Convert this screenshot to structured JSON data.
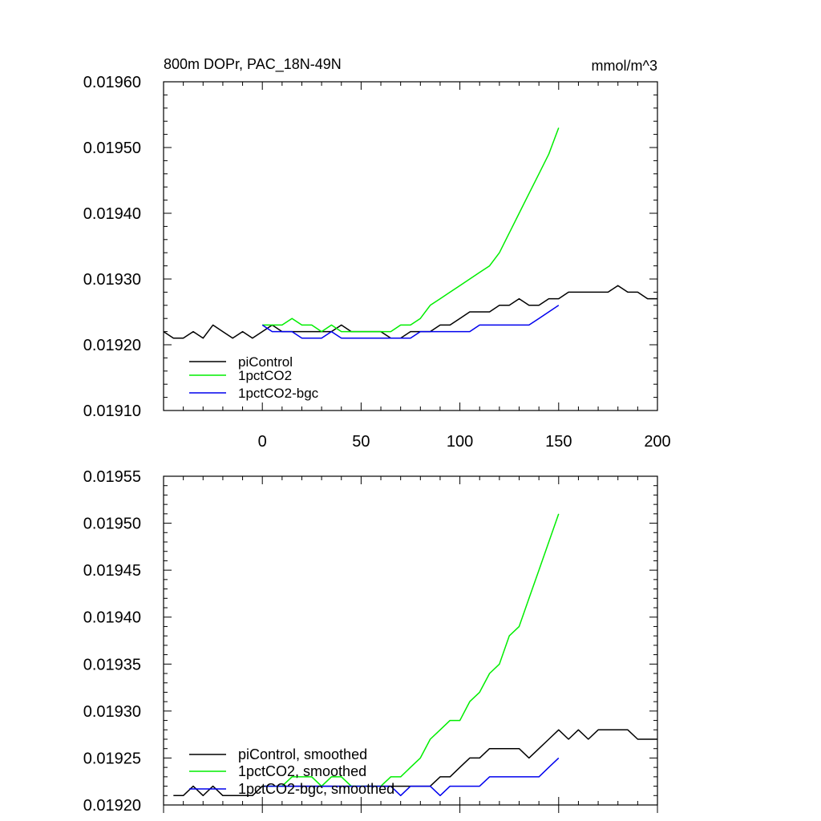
{
  "chart_data": [
    {
      "type": "line",
      "title": "800m DOPr, PAC_18N-49N",
      "units_label": "mmol/m^3",
      "xlim": [
        -50,
        200
      ],
      "ylim": [
        0.0191,
        0.0196
      ],
      "x_ticks": [
        0,
        50,
        100,
        150,
        200
      ],
      "x_tick_labels": [
        "0",
        "50",
        "100",
        "150",
        "200"
      ],
      "y_ticks": [
        0.0191,
        0.0192,
        0.0193,
        0.0194,
        0.0195,
        0.0196
      ],
      "y_tick_labels": [
        "0.01910",
        "0.01920",
        "0.01930",
        "0.01940",
        "0.01950",
        "0.01960"
      ],
      "legend_position": "bottom-left",
      "series": [
        {
          "name": "piControl",
          "color": "#000000",
          "x": [
            -50,
            -45,
            -40,
            -35,
            -30,
            -25,
            -20,
            -15,
            -10,
            -5,
            0,
            5,
            10,
            15,
            20,
            25,
            30,
            35,
            40,
            45,
            50,
            55,
            60,
            65,
            70,
            75,
            80,
            85,
            90,
            95,
            100,
            105,
            110,
            115,
            120,
            125,
            130,
            135,
            140,
            145,
            150,
            155,
            160,
            165,
            170,
            175,
            180,
            185,
            190,
            195,
            200
          ],
          "y": [
            0.01922,
            0.01921,
            0.01921,
            0.01922,
            0.01921,
            0.01923,
            0.01922,
            0.01921,
            0.01922,
            0.01921,
            0.01922,
            0.01923,
            0.01922,
            0.01922,
            0.01922,
            0.01922,
            0.01922,
            0.01922,
            0.01923,
            0.01922,
            0.01922,
            0.01922,
            0.01922,
            0.01921,
            0.01921,
            0.01922,
            0.01922,
            0.01922,
            0.01923,
            0.01923,
            0.01924,
            0.01925,
            0.01925,
            0.01925,
            0.01926,
            0.01926,
            0.01927,
            0.01926,
            0.01926,
            0.01927,
            0.01927,
            0.01928,
            0.01928,
            0.01928,
            0.01928,
            0.01928,
            0.01929,
            0.01928,
            0.01928,
            0.01927,
            0.01927
          ]
        },
        {
          "name": "1pctCO2",
          "color": "#00ee00",
          "x": [
            0,
            5,
            10,
            15,
            20,
            25,
            30,
            35,
            40,
            45,
            50,
            55,
            60,
            65,
            70,
            75,
            80,
            85,
            90,
            95,
            100,
            105,
            110,
            115,
            120,
            125,
            130,
            135,
            140,
            145,
            150
          ],
          "y": [
            0.01923,
            0.01923,
            0.01923,
            0.01924,
            0.01923,
            0.01923,
            0.01922,
            0.01923,
            0.01922,
            0.01922,
            0.01922,
            0.01922,
            0.01922,
            0.01922,
            0.01923,
            0.01923,
            0.01924,
            0.01926,
            0.01927,
            0.01928,
            0.01929,
            0.0193,
            0.01931,
            0.01932,
            0.01934,
            0.01937,
            0.0194,
            0.01943,
            0.01946,
            0.01949,
            0.01953
          ]
        },
        {
          "name": "1pctCO2-bgc",
          "color": "#0000ee",
          "x": [
            0,
            5,
            10,
            15,
            20,
            25,
            30,
            35,
            40,
            45,
            50,
            55,
            60,
            65,
            70,
            75,
            80,
            85,
            90,
            95,
            100,
            105,
            110,
            115,
            120,
            125,
            130,
            135,
            140,
            145,
            150
          ],
          "y": [
            0.01923,
            0.01922,
            0.01922,
            0.01922,
            0.01921,
            0.01921,
            0.01921,
            0.01922,
            0.01921,
            0.01921,
            0.01921,
            0.01921,
            0.01921,
            0.01921,
            0.01921,
            0.01921,
            0.01922,
            0.01922,
            0.01922,
            0.01922,
            0.01922,
            0.01922,
            0.01923,
            0.01923,
            0.01923,
            0.01923,
            0.01923,
            0.01923,
            0.01924,
            0.01925,
            0.01926
          ]
        }
      ]
    },
    {
      "type": "line",
      "title": "",
      "xlim": [
        -50,
        200
      ],
      "ylim": [
        0.0192,
        0.01955
      ],
      "x_ticks": [
        0,
        50,
        100,
        150,
        200
      ],
      "y_ticks": [
        0.0192,
        0.01925,
        0.0193,
        0.01935,
        0.0194,
        0.01945,
        0.0195,
        0.01955
      ],
      "y_tick_labels": [
        "0.01920",
        "0.01925",
        "0.01930",
        "0.01935",
        "0.01940",
        "0.01945",
        "0.01950",
        "0.01955"
      ],
      "legend_position": "bottom-left",
      "series": [
        {
          "name": "piControl, smoothed",
          "color": "#000000",
          "x": [
            -45,
            -40,
            -35,
            -30,
            -25,
            -20,
            -15,
            -10,
            -5,
            0,
            5,
            10,
            15,
            20,
            25,
            30,
            35,
            40,
            45,
            50,
            55,
            60,
            65,
            70,
            75,
            80,
            85,
            90,
            95,
            100,
            105,
            110,
            115,
            120,
            125,
            130,
            135,
            140,
            145,
            150,
            155,
            160,
            165,
            170,
            175,
            180,
            185,
            190,
            195,
            200
          ],
          "y": [
            0.01921,
            0.01921,
            0.01922,
            0.01921,
            0.01922,
            0.01921,
            0.01921,
            0.01921,
            0.01921,
            0.01922,
            0.01922,
            0.01922,
            0.01922,
            0.01922,
            0.01922,
            0.01922,
            0.01922,
            0.01922,
            0.01922,
            0.01922,
            0.01922,
            0.01922,
            0.01922,
            0.01922,
            0.01922,
            0.01922,
            0.01922,
            0.01923,
            0.01923,
            0.01924,
            0.01925,
            0.01925,
            0.01926,
            0.01926,
            0.01926,
            0.01926,
            0.01925,
            0.01926,
            0.01927,
            0.01928,
            0.01927,
            0.01928,
            0.01927,
            0.01928,
            0.01928,
            0.01928,
            0.01928,
            0.01927,
            0.01927,
            0.01927
          ]
        },
        {
          "name": "1pctCO2, smoothed",
          "color": "#00ee00",
          "x": [
            0,
            5,
            10,
            15,
            20,
            25,
            30,
            35,
            40,
            45,
            50,
            55,
            60,
            65,
            70,
            75,
            80,
            85,
            90,
            95,
            100,
            105,
            110,
            115,
            120,
            125,
            130,
            135,
            140,
            145,
            150
          ],
          "y": [
            0.01922,
            0.01922,
            0.01922,
            0.01923,
            0.01923,
            0.01923,
            0.01922,
            0.01923,
            0.01923,
            0.01922,
            0.01922,
            0.01922,
            0.01922,
            0.01923,
            0.01923,
            0.01924,
            0.01925,
            0.01927,
            0.01928,
            0.01929,
            0.01929,
            0.01931,
            0.01932,
            0.01934,
            0.01935,
            0.01938,
            0.01939,
            0.01942,
            0.01945,
            0.01948,
            0.01951
          ]
        },
        {
          "name": "1pctCO2-bgc, smoothed",
          "color": "#0000ee",
          "x": [
            0,
            5,
            10,
            15,
            20,
            25,
            30,
            35,
            40,
            45,
            50,
            55,
            60,
            65,
            70,
            75,
            80,
            85,
            90,
            95,
            100,
            105,
            110,
            115,
            120,
            125,
            130,
            135,
            140,
            145,
            150
          ],
          "y": [
            0.01922,
            0.01922,
            0.01922,
            0.01922,
            0.01922,
            0.01922,
            0.01922,
            0.01922,
            0.01922,
            0.01922,
            0.01922,
            0.01922,
            0.01922,
            0.01922,
            0.01921,
            0.01922,
            0.01922,
            0.01922,
            0.01921,
            0.01922,
            0.01922,
            0.01922,
            0.01922,
            0.01923,
            0.01923,
            0.01923,
            0.01923,
            0.01923,
            0.01923,
            0.01924,
            0.01925
          ]
        }
      ]
    }
  ]
}
